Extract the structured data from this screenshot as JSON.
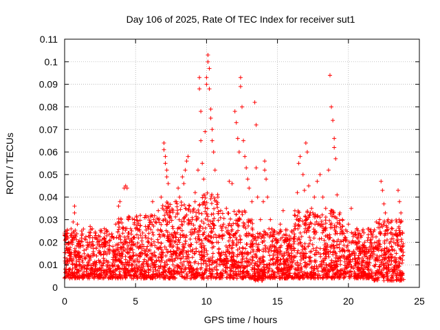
{
  "chart_data": {
    "type": "scatter",
    "title": "Day 106 of 2025, Rate Of TEC Index for receiver sut1",
    "xlabel": "GPS time / hours",
    "ylabel": "ROTI / TECUs",
    "xlim": [
      0,
      25
    ],
    "ylim": [
      0,
      0.11
    ],
    "x_ticks": [
      0,
      5,
      10,
      15,
      20,
      25
    ],
    "y_ticks": [
      0,
      0.01,
      0.02,
      0.03,
      0.04,
      0.05,
      0.06,
      0.07,
      0.08,
      0.09,
      0.1,
      0.11
    ],
    "x_tick_labels": [
      "0",
      "5",
      "10",
      "15",
      "20",
      "25"
    ],
    "y_tick_labels": [
      "0",
      "0.01",
      "0.02",
      "0.03",
      "0.04",
      "0.05",
      "0.06",
      "0.07",
      "0.08",
      "0.09",
      "0.1",
      "0.11"
    ],
    "grid": true,
    "marker": "plus",
    "color": "#ff0000",
    "series": [
      {
        "points": [
          [
            0.2,
            0.012
          ],
          [
            0.4,
            0.015
          ],
          [
            0.6,
            0.022
          ],
          [
            0.6,
            0.029
          ],
          [
            0.7,
            0.033
          ],
          [
            0.7,
            0.036
          ],
          [
            0.9,
            0.028
          ],
          [
            1.0,
            0.018
          ],
          [
            1.2,
            0.025
          ],
          [
            1.4,
            0.013
          ],
          [
            1.6,
            0.02
          ],
          [
            1.8,
            0.027
          ],
          [
            2.0,
            0.015
          ],
          [
            2.2,
            0.023
          ],
          [
            2.4,
            0.012
          ],
          [
            2.6,
            0.019
          ],
          [
            2.8,
            0.026
          ],
          [
            3.0,
            0.01
          ],
          [
            3.2,
            0.021
          ],
          [
            3.4,
            0.016
          ],
          [
            3.6,
            0.028
          ],
          [
            3.8,
            0.036
          ],
          [
            3.9,
            0.038
          ],
          [
            4.1,
            0.024
          ],
          [
            4.2,
            0.044
          ],
          [
            4.3,
            0.045
          ],
          [
            4.4,
            0.044
          ],
          [
            4.5,
            0.03
          ],
          [
            4.7,
            0.02
          ],
          [
            4.9,
            0.028
          ],
          [
            5.1,
            0.018
          ],
          [
            5.3,
            0.025
          ],
          [
            5.5,
            0.015
          ],
          [
            5.7,
            0.027
          ],
          [
            5.9,
            0.02
          ],
          [
            6.1,
            0.032
          ],
          [
            6.2,
            0.038
          ],
          [
            6.4,
            0.029
          ],
          [
            6.6,
            0.034
          ],
          [
            6.8,
            0.04
          ],
          [
            7.0,
            0.064
          ],
          [
            7.0,
            0.061
          ],
          [
            7.1,
            0.058
          ],
          [
            7.1,
            0.055
          ],
          [
            7.2,
            0.052
          ],
          [
            7.2,
            0.049
          ],
          [
            7.3,
            0.046
          ],
          [
            7.4,
            0.034
          ],
          [
            7.6,
            0.027
          ],
          [
            7.8,
            0.038
          ],
          [
            8.0,
            0.044
          ],
          [
            8.1,
            0.04
          ],
          [
            8.3,
            0.049
          ],
          [
            8.4,
            0.046
          ],
          [
            8.5,
            0.052
          ],
          [
            8.6,
            0.056
          ],
          [
            8.7,
            0.058
          ],
          [
            8.8,
            0.036
          ],
          [
            9.0,
            0.03
          ],
          [
            9.2,
            0.042
          ],
          [
            9.4,
            0.052
          ],
          [
            9.5,
            0.093
          ],
          [
            9.5,
            0.088
          ],
          [
            9.6,
            0.078
          ],
          [
            9.6,
            0.065
          ],
          [
            9.7,
            0.055
          ],
          [
            9.8,
            0.048
          ],
          [
            9.9,
            0.069
          ],
          [
            10.0,
            0.093
          ],
          [
            10.0,
            0.09
          ],
          [
            10.1,
            0.103
          ],
          [
            10.1,
            0.1
          ],
          [
            10.2,
            0.097
          ],
          [
            10.2,
            0.088
          ],
          [
            10.3,
            0.079
          ],
          [
            10.3,
            0.075
          ],
          [
            10.4,
            0.07
          ],
          [
            10.4,
            0.065
          ],
          [
            10.5,
            0.06
          ],
          [
            10.6,
            0.052
          ],
          [
            10.8,
            0.04
          ],
          [
            11.0,
            0.034
          ],
          [
            11.2,
            0.028
          ],
          [
            11.4,
            0.035
          ],
          [
            11.6,
            0.047
          ],
          [
            11.8,
            0.046
          ],
          [
            12.0,
            0.078
          ],
          [
            12.1,
            0.073
          ],
          [
            12.2,
            0.066
          ],
          [
            12.3,
            0.06
          ],
          [
            12.4,
            0.093
          ],
          [
            12.4,
            0.089
          ],
          [
            12.5,
            0.08
          ],
          [
            12.6,
            0.065
          ],
          [
            12.7,
            0.058
          ],
          [
            12.8,
            0.053
          ],
          [
            12.9,
            0.048
          ],
          [
            13.0,
            0.044
          ],
          [
            13.2,
            0.038
          ],
          [
            13.4,
            0.082
          ],
          [
            13.5,
            0.072
          ],
          [
            13.5,
            0.053
          ],
          [
            13.6,
            0.04
          ],
          [
            13.8,
            0.03
          ],
          [
            14.0,
            0.038
          ],
          [
            14.1,
            0.052
          ],
          [
            14.1,
            0.056
          ],
          [
            14.2,
            0.048
          ],
          [
            14.3,
            0.04
          ],
          [
            14.5,
            0.03
          ],
          [
            14.8,
            0.025
          ],
          [
            15.0,
            0.02
          ],
          [
            15.2,
            0.028
          ],
          [
            15.4,
            0.034
          ],
          [
            15.6,
            0.022
          ],
          [
            15.8,
            0.018
          ],
          [
            16.0,
            0.025
          ],
          [
            16.2,
            0.032
          ],
          [
            16.4,
            0.042
          ],
          [
            16.5,
            0.055
          ],
          [
            16.6,
            0.058
          ],
          [
            16.8,
            0.05
          ],
          [
            16.9,
            0.043
          ],
          [
            17.0,
            0.064
          ],
          [
            17.1,
            0.06
          ],
          [
            17.2,
            0.045
          ],
          [
            17.4,
            0.035
          ],
          [
            17.6,
            0.04
          ],
          [
            17.8,
            0.047
          ],
          [
            18.0,
            0.05
          ],
          [
            18.2,
            0.04
          ],
          [
            18.4,
            0.035
          ],
          [
            18.6,
            0.052
          ],
          [
            18.7,
            0.094
          ],
          [
            18.8,
            0.08
          ],
          [
            18.9,
            0.074
          ],
          [
            19.0,
            0.066
          ],
          [
            19.0,
            0.062
          ],
          [
            19.1,
            0.057
          ],
          [
            19.2,
            0.041
          ],
          [
            19.4,
            0.033
          ],
          [
            19.6,
            0.027
          ],
          [
            19.8,
            0.022
          ],
          [
            20.0,
            0.028
          ],
          [
            20.2,
            0.035
          ],
          [
            20.4,
            0.02
          ],
          [
            20.6,
            0.026
          ],
          [
            20.8,
            0.018
          ],
          [
            21.0,
            0.025
          ],
          [
            21.2,
            0.015
          ],
          [
            21.4,
            0.022
          ],
          [
            21.6,
            0.018
          ],
          [
            21.8,
            0.016
          ],
          [
            22.0,
            0.02
          ],
          [
            22.2,
            0.03
          ],
          [
            22.3,
            0.047
          ],
          [
            22.4,
            0.043
          ],
          [
            22.5,
            0.037
          ],
          [
            22.6,
            0.033
          ],
          [
            22.8,
            0.03
          ],
          [
            23.0,
            0.024
          ],
          [
            23.2,
            0.02
          ],
          [
            23.4,
            0.029
          ],
          [
            23.5,
            0.043
          ],
          [
            23.6,
            0.038
          ],
          [
            23.7,
            0.033
          ],
          [
            23.8,
            0.018
          ]
        ]
      }
    ],
    "dense_band": {
      "note_free": true,
      "segments": [
        [
          0.0,
          3.8,
          0.004,
          0.026
        ],
        [
          3.8,
          6.8,
          0.004,
          0.032
        ],
        [
          6.8,
          9.6,
          0.004,
          0.038
        ],
        [
          9.6,
          10.8,
          0.004,
          0.042
        ],
        [
          10.8,
          12.8,
          0.004,
          0.034
        ],
        [
          12.8,
          13.3,
          0.004,
          0.03
        ],
        [
          13.3,
          14.0,
          0.003,
          0.024
        ],
        [
          14.0,
          16.2,
          0.004,
          0.026
        ],
        [
          16.2,
          19.6,
          0.004,
          0.034
        ],
        [
          19.6,
          21.8,
          0.004,
          0.026
        ],
        [
          21.8,
          23.9,
          0.003,
          0.03
        ]
      ]
    }
  }
}
